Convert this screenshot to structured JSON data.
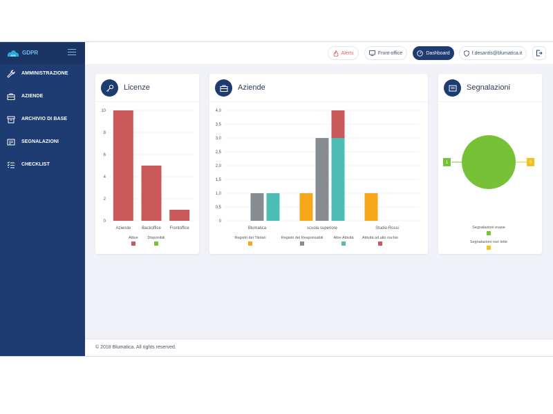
{
  "app": {
    "name": "GDPR"
  },
  "sidebar": {
    "items": [
      {
        "label": "AMMINISTRAZIONE",
        "icon": "wrench-icon"
      },
      {
        "label": "AZIENDE",
        "icon": "briefcase-icon"
      },
      {
        "label": "ARCHIVIO DI BASE",
        "icon": "archive-icon"
      },
      {
        "label": "SEGNALAZIONI",
        "icon": "message-icon"
      },
      {
        "label": "CHECKLIST",
        "icon": "checklist-icon"
      }
    ]
  },
  "topbar": {
    "alerts_label": "Alerts",
    "frontoffice_label": "Front-office",
    "dashboard_label": "Dashboard",
    "user_email": "f.desantis@blumatica.it"
  },
  "cards": {
    "licenze_title": "Licenze",
    "aziende_title": "Aziende",
    "segnalazioni_title": "Segnalazioni"
  },
  "footer": {
    "text": "© 2018 Blumatica. All rights reserved."
  },
  "colors": {
    "sidebar": "#1e3c72",
    "red": "#c9595a",
    "green": "#77c136",
    "gray": "#868c92",
    "teal": "#4dbdb6",
    "orange": "#f6a81a",
    "yellow": "#f3c21a"
  },
  "chart_data": [
    {
      "type": "bar",
      "categories": [
        "Aziende",
        "Backoffice",
        "Frontoffice"
      ],
      "series": [
        {
          "name": "Attive",
          "values": [
            10,
            5,
            1
          ],
          "color": "#c9595a"
        },
        {
          "name": "Disponibili",
          "values": [
            0,
            0,
            0
          ],
          "color": "#77c136"
        }
      ],
      "ylim": [
        0,
        10
      ],
      "yticks": [
        "0",
        "2",
        "4",
        "6",
        "8",
        "10"
      ]
    },
    {
      "type": "bar",
      "categories": [
        "Blumatica",
        "scuola superiore",
        "Studio Rossi"
      ],
      "series": [
        {
          "name": "Registri dei Titolari",
          "values": [
            0,
            1,
            1
          ],
          "color": "#f6a81a"
        },
        {
          "name": "Registri dei Responsabili",
          "values": [
            1,
            3,
            0
          ],
          "color": "#868c92"
        },
        {
          "name": "Altre Attività",
          "values": [
            1,
            3,
            0
          ],
          "color": "#4dbdb6"
        },
        {
          "name": "Attività ad alto rischio",
          "values": [
            0,
            1,
            0
          ],
          "color": "#c9595a"
        }
      ],
      "ylim": [
        0,
        4
      ],
      "yticks": [
        "0",
        "0,5",
        "1,0",
        "1,5",
        "2,0",
        "2,5",
        "3,0",
        "3,5",
        "4,0"
      ]
    },
    {
      "type": "pie",
      "slices": [
        {
          "label": "Segnalazioni evase",
          "value": 1,
          "value_label": "1",
          "color": "#77c136"
        },
        {
          "label": "Segnalazioni non lette",
          "value": 0,
          "value_label": "0",
          "color": "#f3c21a"
        }
      ]
    }
  ]
}
